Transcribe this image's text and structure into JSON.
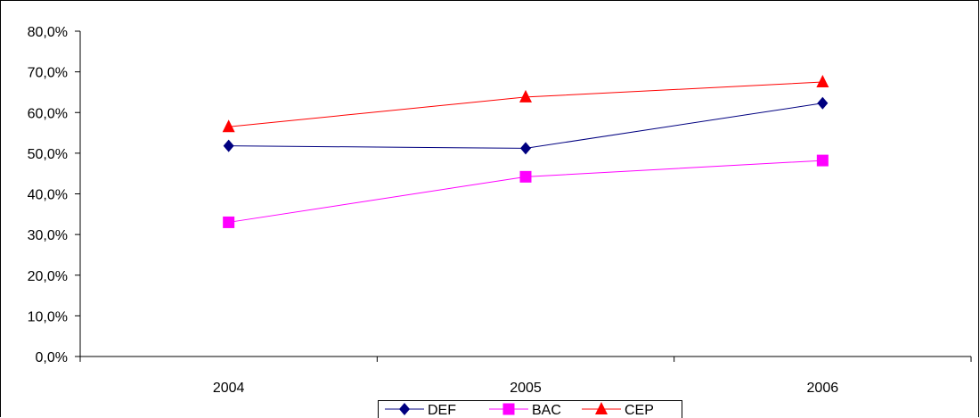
{
  "chart_data": {
    "type": "line",
    "categories": [
      "2004",
      "2005",
      "2006"
    ],
    "series": [
      {
        "name": "DEF",
        "values": [
          51.8,
          51.2,
          62.3
        ],
        "color": "#000080",
        "marker": "diamond"
      },
      {
        "name": "BAC",
        "values": [
          33.0,
          44.2,
          48.2
        ],
        "color": "#FF00FF",
        "marker": "square"
      },
      {
        "name": "CEP",
        "values": [
          56.5,
          63.8,
          67.5
        ],
        "color": "#FF0000",
        "marker": "triangle"
      }
    ],
    "ylim": [
      0,
      80
    ],
    "yticks": [
      "0,0%",
      "10,0%",
      "20,0%",
      "30,0%",
      "40,0%",
      "50,0%",
      "60,0%",
      "70,0%",
      "80,0%"
    ],
    "grid": false,
    "legend_position": "bottom-center"
  }
}
